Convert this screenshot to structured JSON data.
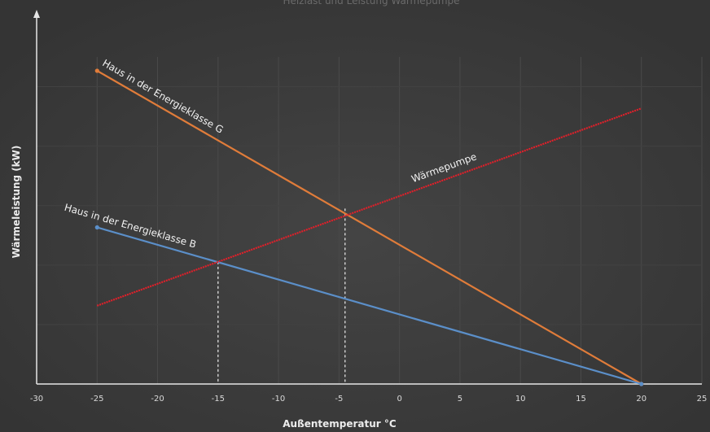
{
  "chart_data": {
    "type": "line",
    "title": "Heizlast und Leistung Wärmepumpe",
    "xlabel": "Außentemperatur °C",
    "ylabel": "Wärmeleistung (kW)",
    "xlim": [
      -30,
      25
    ],
    "ylim": [
      0,
      10
    ],
    "x_ticks": [
      "-30",
      "-25",
      "-20",
      "-15",
      "-10",
      "-5",
      "0",
      "5",
      "10",
      "15",
      "20",
      "25"
    ],
    "grid": true,
    "legend": "none",
    "series": [
      {
        "name": "Haus in der Energieklasse G",
        "color": "#e07c3a",
        "points": [
          [
            -25,
            10
          ],
          [
            20,
            0
          ]
        ]
      },
      {
        "name": "Haus in der Energieklasse B",
        "color": "#5b8fc9",
        "points": [
          [
            -25,
            5.0
          ],
          [
            20,
            0
          ]
        ]
      },
      {
        "name": "Wärmepumpe",
        "color": "#e0202a",
        "points": [
          [
            -25,
            2.5
          ],
          [
            20,
            8.8
          ]
        ]
      }
    ],
    "reference_lines": [
      {
        "x": -15,
        "y": 3.9
      },
      {
        "x": -4.5,
        "y": 5.6
      }
    ]
  }
}
